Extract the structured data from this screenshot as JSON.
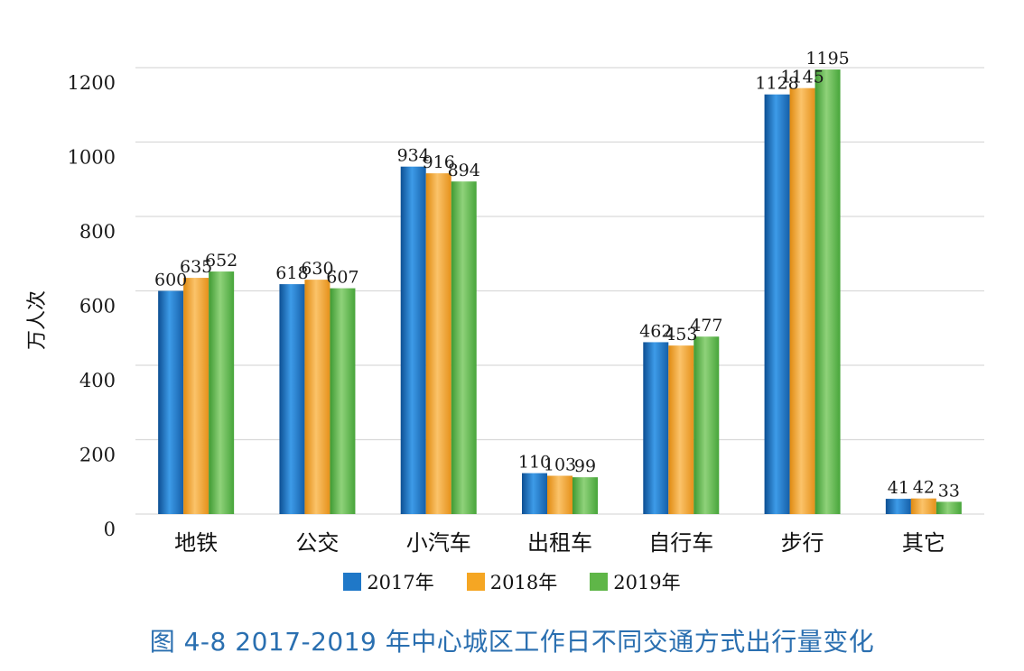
{
  "chart_data": {
    "type": "bar",
    "categories": [
      "地铁",
      "公交",
      "小汽车",
      "出租车",
      "自行车",
      "步行",
      "其它"
    ],
    "series": [
      {
        "name": "2017年",
        "values": [
          600,
          618,
          934,
          110,
          462,
          1128,
          41
        ],
        "color": "#1f78c8"
      },
      {
        "name": "2018年",
        "values": [
          635,
          630,
          916,
          103,
          453,
          1145,
          42
        ],
        "color": "#f5a623"
      },
      {
        "name": "2019年",
        "values": [
          652,
          607,
          894,
          99,
          477,
          1195,
          33
        ],
        "color": "#5fb648"
      }
    ],
    "ylabel": "万人次",
    "ylim": [
      0,
      1200
    ],
    "yticks": [
      0,
      200,
      400,
      600,
      800,
      1000,
      1200
    ],
    "grid": true,
    "legend_position": "bottom"
  },
  "caption": "图 4-8 2017-2019 年中心城区工作日不同交通方式出行量变化"
}
